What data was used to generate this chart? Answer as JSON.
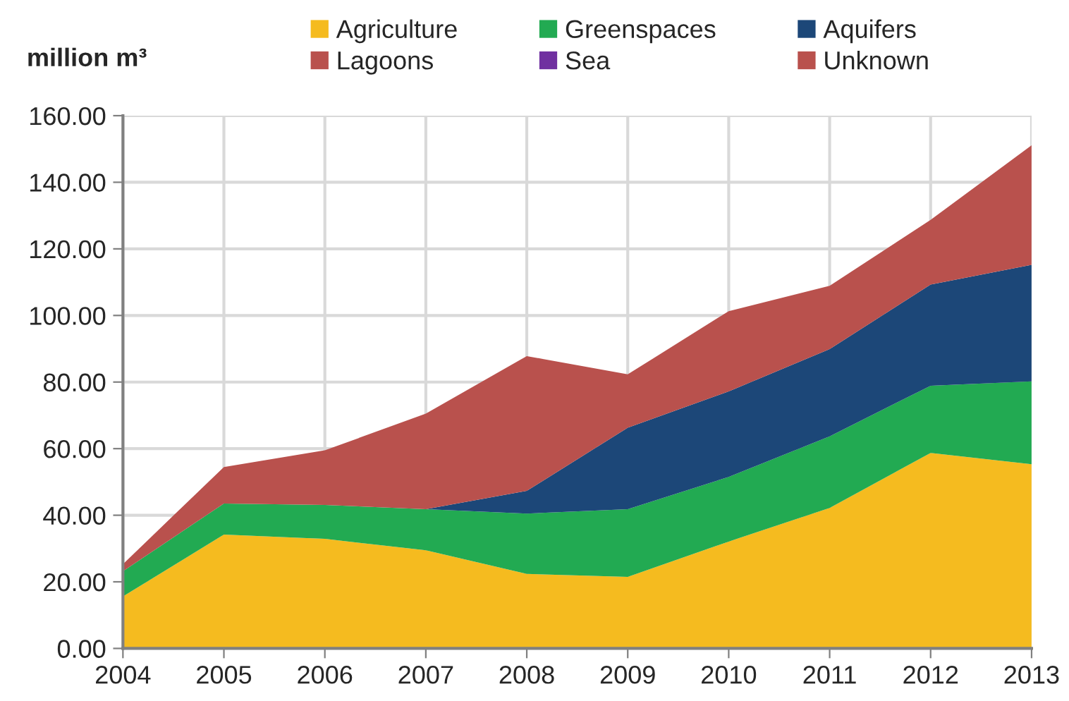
{
  "chart_data": {
    "type": "area",
    "stacked": true,
    "ylabel": "million m³",
    "x": [
      2004,
      2005,
      2006,
      2007,
      2008,
      2009,
      2010,
      2011,
      2012,
      2013
    ],
    "series": [
      {
        "name": "Agriculture",
        "color": "#f5bb1f",
        "values": [
          15.6,
          34.2,
          32.9,
          29.5,
          22.4,
          21.5,
          32.1,
          42.2,
          58.7,
          55.3
        ]
      },
      {
        "name": "Greenspaces",
        "color": "#22aa52",
        "values": [
          7.6,
          9.3,
          10.2,
          12.3,
          18.1,
          20.3,
          19.4,
          21.5,
          20.2,
          24.9
        ]
      },
      {
        "name": "Aquifers",
        "color": "#1c4778",
        "values": [
          0,
          0,
          0,
          0,
          6.8,
          24.5,
          25.7,
          26.2,
          30.4,
          35.0
        ]
      },
      {
        "name": "Lagoons",
        "color": "#b9514d",
        "values": [
          null,
          null,
          null,
          null,
          null,
          null,
          null,
          null,
          null,
          null
        ]
      },
      {
        "name": "Sea",
        "color": "#7030a0",
        "values": [
          null,
          null,
          null,
          null,
          null,
          null,
          null,
          null,
          null,
          null
        ]
      },
      {
        "name": "Unknown",
        "color": "#b9514d",
        "values": [
          2.1,
          11.0,
          16.4,
          28.7,
          40.5,
          16.0,
          24.1,
          19.0,
          19.4,
          35.9
        ]
      }
    ],
    "xlim": [
      2004,
      2013
    ],
    "xticks": [
      2004,
      2005,
      2006,
      2007,
      2008,
      2009,
      2010,
      2011,
      2012,
      2013
    ],
    "ylim": [
      0,
      160
    ],
    "yticks": [
      {
        "value": 0,
        "label": "0.00"
      },
      {
        "value": 20,
        "label": "20.00"
      },
      {
        "value": 40,
        "label": "40.00"
      },
      {
        "value": 60,
        "label": "60.00"
      },
      {
        "value": 80,
        "label": "80.00"
      },
      {
        "value": 100,
        "label": "100.00"
      },
      {
        "value": 120,
        "label": "120.00"
      },
      {
        "value": 140,
        "label": "140.00"
      },
      {
        "value": 160,
        "label": "160.00"
      }
    ],
    "grid": true,
    "legend": "top"
  }
}
